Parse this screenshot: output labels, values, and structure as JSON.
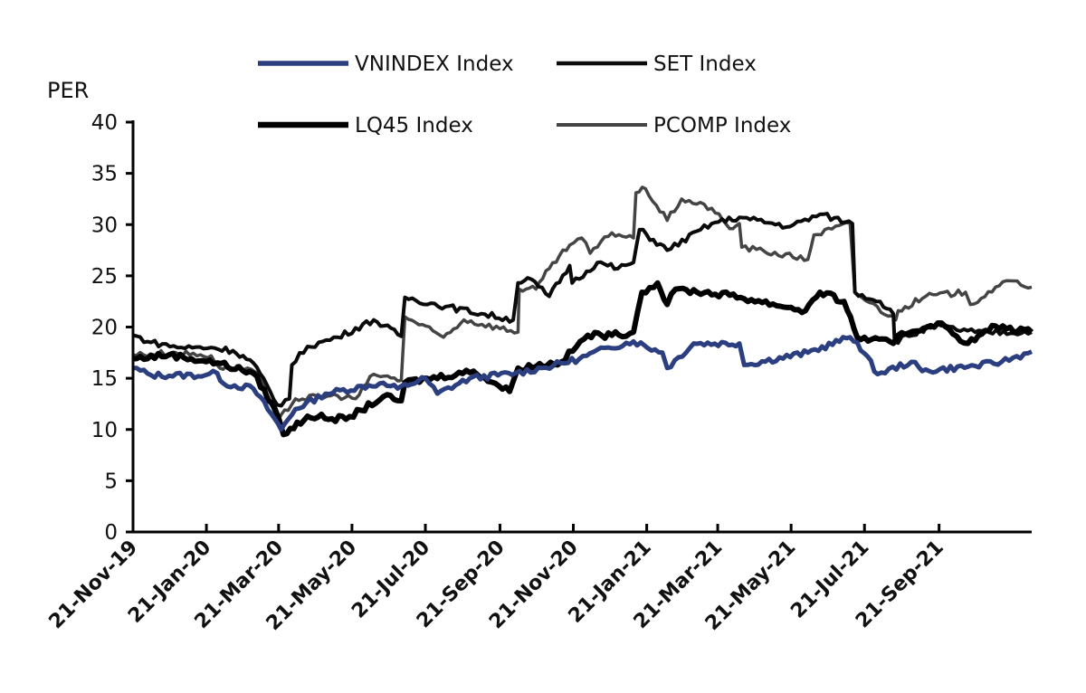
{
  "chart_data": {
    "type": "line",
    "title": "",
    "ylabel": "PER",
    "xlabel": "",
    "x_units": "days since 21-Nov-19",
    "xlim": [
      0,
      740
    ],
    "ylim": [
      0,
      40
    ],
    "yticks": [
      0,
      5,
      10,
      15,
      20,
      25,
      30,
      35,
      40
    ],
    "xticks": [
      {
        "x": 0,
        "label": "21-Nov-19"
      },
      {
        "x": 61,
        "label": "21-Jan-20"
      },
      {
        "x": 121,
        "label": "21-Mar-20"
      },
      {
        "x": 182,
        "label": "21-May-20"
      },
      {
        "x": 243,
        "label": "21-Jul-20"
      },
      {
        "x": 305,
        "label": "21-Sep-20"
      },
      {
        "x": 366,
        "label": "21-Nov-20"
      },
      {
        "x": 427,
        "label": "21-Jan-21"
      },
      {
        "x": 486,
        "label": "21-Mar-21"
      },
      {
        "x": 547,
        "label": "21-May-21"
      },
      {
        "x": 608,
        "label": "21-Jul-21"
      },
      {
        "x": 670,
        "label": "21-Sep-21"
      }
    ],
    "grid": false,
    "legend_position": "top",
    "series": [
      {
        "name": "VNINDEX Index",
        "color": "#2b3f80",
        "width": 5,
        "points": [
          [
            0,
            16
          ],
          [
            15,
            15.3
          ],
          [
            60,
            15.3
          ],
          [
            70,
            15.5
          ],
          [
            75,
            14.5
          ],
          [
            100,
            14
          ],
          [
            118,
            11
          ],
          [
            123,
            10
          ],
          [
            135,
            12
          ],
          [
            160,
            13.5
          ],
          [
            205,
            14.5
          ],
          [
            220,
            14
          ],
          [
            243,
            15
          ],
          [
            253,
            13.5
          ],
          [
            280,
            15
          ],
          [
            318,
            15.5
          ],
          [
            340,
            16
          ],
          [
            371,
            16.9
          ],
          [
            395,
            18
          ],
          [
            416,
            18.6
          ],
          [
            440,
            17.5
          ],
          [
            444,
            16
          ],
          [
            466,
            18.4
          ],
          [
            504,
            18.4
          ],
          [
            508,
            16.3
          ],
          [
            561,
            17.5
          ],
          [
            596,
            19
          ],
          [
            602,
            18.5
          ],
          [
            619,
            15.4
          ],
          [
            647,
            16.6
          ],
          [
            656,
            15.7
          ],
          [
            700,
            16.2
          ],
          [
            722,
            16.6
          ],
          [
            747,
            17.6
          ]
        ]
      },
      {
        "name": "SET Index",
        "color": "#0a0a0a",
        "width": 4,
        "points": [
          [
            0,
            19.2
          ],
          [
            15,
            18.5
          ],
          [
            40,
            18
          ],
          [
            65,
            18
          ],
          [
            83,
            17.7
          ],
          [
            100,
            16.5
          ],
          [
            120,
            12.4
          ],
          [
            130,
            13
          ],
          [
            132,
            16.3
          ],
          [
            145,
            18.1
          ],
          [
            170,
            19
          ],
          [
            200,
            20.7
          ],
          [
            223,
            19.1
          ],
          [
            226,
            22.9
          ],
          [
            260,
            22
          ],
          [
            316,
            20.7
          ],
          [
            320,
            24.3
          ],
          [
            328,
            24.8
          ],
          [
            346,
            23
          ],
          [
            363,
            26
          ],
          [
            365,
            24.3
          ],
          [
            386,
            26.3
          ],
          [
            403,
            25.7
          ],
          [
            416,
            26.3
          ],
          [
            421,
            29.5
          ],
          [
            444,
            27.5
          ],
          [
            481,
            30.1
          ],
          [
            504,
            30.7
          ],
          [
            546,
            29.8
          ],
          [
            571,
            31
          ],
          [
            598,
            30.1
          ],
          [
            600,
            23.4
          ],
          [
            621,
            22.5
          ],
          [
            632,
            21.3
          ],
          [
            633,
            18.6
          ],
          [
            666,
            20.1
          ],
          [
            700,
            19.5
          ],
          [
            747,
            19.5
          ]
        ]
      },
      {
        "name": "LQ45 Index",
        "color": "#000000",
        "width": 6,
        "points": [
          [
            0,
            16.9
          ],
          [
            30,
            17.3
          ],
          [
            70,
            16.5
          ],
          [
            100,
            15.5
          ],
          [
            118,
            12
          ],
          [
            125,
            9.5
          ],
          [
            145,
            11.3
          ],
          [
            177,
            11
          ],
          [
            208,
            13.2
          ],
          [
            223,
            12.8
          ],
          [
            226,
            14.6
          ],
          [
            283,
            15.7
          ],
          [
            313,
            13.7
          ],
          [
            320,
            16
          ],
          [
            356,
            16.6
          ],
          [
            378,
            19.2
          ],
          [
            398,
            19.2
          ],
          [
            416,
            19.5
          ],
          [
            423,
            23.4
          ],
          [
            436,
            24.3
          ],
          [
            444,
            22.2
          ],
          [
            451,
            23.7
          ],
          [
            496,
            23.1
          ],
          [
            559,
            21.6
          ],
          [
            571,
            23.4
          ],
          [
            591,
            22.5
          ],
          [
            602,
            19
          ],
          [
            632,
            18.4
          ],
          [
            636,
            19.2
          ],
          [
            669,
            20.4
          ],
          [
            694,
            18.4
          ],
          [
            717,
            20.1
          ],
          [
            747,
            19.5
          ]
        ]
      },
      {
        "name": "PCOMP Index",
        "color": "#444444",
        "width": 3.5,
        "points": [
          [
            0,
            17.3
          ],
          [
            32,
            17.5
          ],
          [
            65,
            17.2
          ],
          [
            72,
            16
          ],
          [
            95,
            16
          ],
          [
            105,
            15.4
          ],
          [
            120,
            10.7
          ],
          [
            135,
            13
          ],
          [
            170,
            13.3
          ],
          [
            185,
            13
          ],
          [
            200,
            15.4
          ],
          [
            223,
            14.8
          ],
          [
            226,
            21
          ],
          [
            258,
            19
          ],
          [
            275,
            20.7
          ],
          [
            320,
            19.5
          ],
          [
            321,
            23.7
          ],
          [
            335,
            23.7
          ],
          [
            346,
            25.7
          ],
          [
            363,
            28
          ],
          [
            373,
            28.7
          ],
          [
            380,
            27.2
          ],
          [
            398,
            29.2
          ],
          [
            416,
            28.7
          ],
          [
            418,
            33.1
          ],
          [
            426,
            33.5
          ],
          [
            444,
            30.4
          ],
          [
            456,
            32.5
          ],
          [
            481,
            31.6
          ],
          [
            496,
            29.6
          ],
          [
            504,
            30.1
          ],
          [
            506,
            27.8
          ],
          [
            561,
            26.6
          ],
          [
            566,
            29
          ],
          [
            596,
            30.1
          ],
          [
            600,
            23.4
          ],
          [
            634,
            20.7
          ],
          [
            636,
            21.6
          ],
          [
            659,
            23
          ],
          [
            692,
            23.4
          ],
          [
            696,
            22.2
          ],
          [
            717,
            23.9
          ],
          [
            732,
            24.5
          ],
          [
            747,
            23.9
          ]
        ]
      }
    ]
  }
}
